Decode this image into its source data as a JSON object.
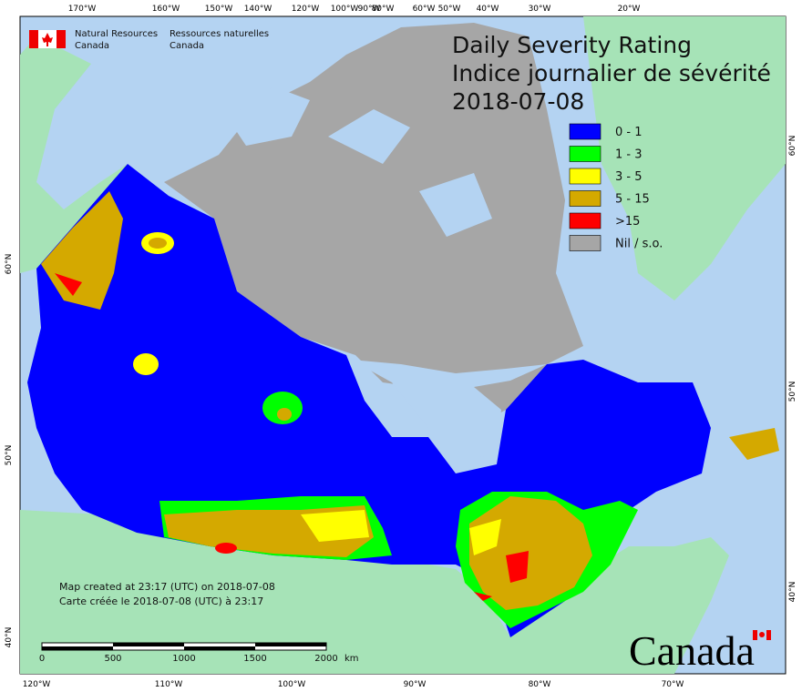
{
  "header": {
    "org_en_1": "Natural Resources",
    "org_en_2": "Canada",
    "org_fr_1": "Ressources naturelles",
    "org_fr_2": "Canada"
  },
  "title": {
    "line1": "Daily Severity Rating",
    "line2": "Indice journalier de sévérité",
    "date": "2018-07-08"
  },
  "legend": [
    {
      "label": "0 - 1",
      "color": "#0000ff"
    },
    {
      "label": "1 - 3",
      "color": "#00ff00"
    },
    {
      "label": "3 - 5",
      "color": "#ffff00"
    },
    {
      "label": "5 - 15",
      "color": "#d4a900"
    },
    {
      "label": ">15",
      "color": "#ff0000"
    },
    {
      "label": "Nil / s.o.",
      "color": "#a6a6a6"
    }
  ],
  "graticule": {
    "top": [
      "170°W",
      "160°W",
      "150°W",
      "140°W",
      "120°W",
      "100°W",
      "90°W",
      "80°W",
      "60°W",
      "50°W",
      "40°W",
      "30°W",
      "20°W"
    ],
    "bottom": [
      "120°W",
      "110°W",
      "100°W",
      "90°W",
      "80°W",
      "70°W"
    ],
    "left": [
      "60°N",
      "50°N",
      "40°N"
    ],
    "right": [
      "60°N",
      "50°N",
      "40°N"
    ]
  },
  "notes": {
    "en": "Map created at 23:17 (UTC) on 2018-07-08",
    "fr": "Carte créée le 2018-07-08 (UTC) à 23:17"
  },
  "scale": {
    "labels": [
      "0",
      "500",
      "1000",
      "1500",
      "2000"
    ],
    "unit": "km"
  },
  "wordmark": "Canada"
}
